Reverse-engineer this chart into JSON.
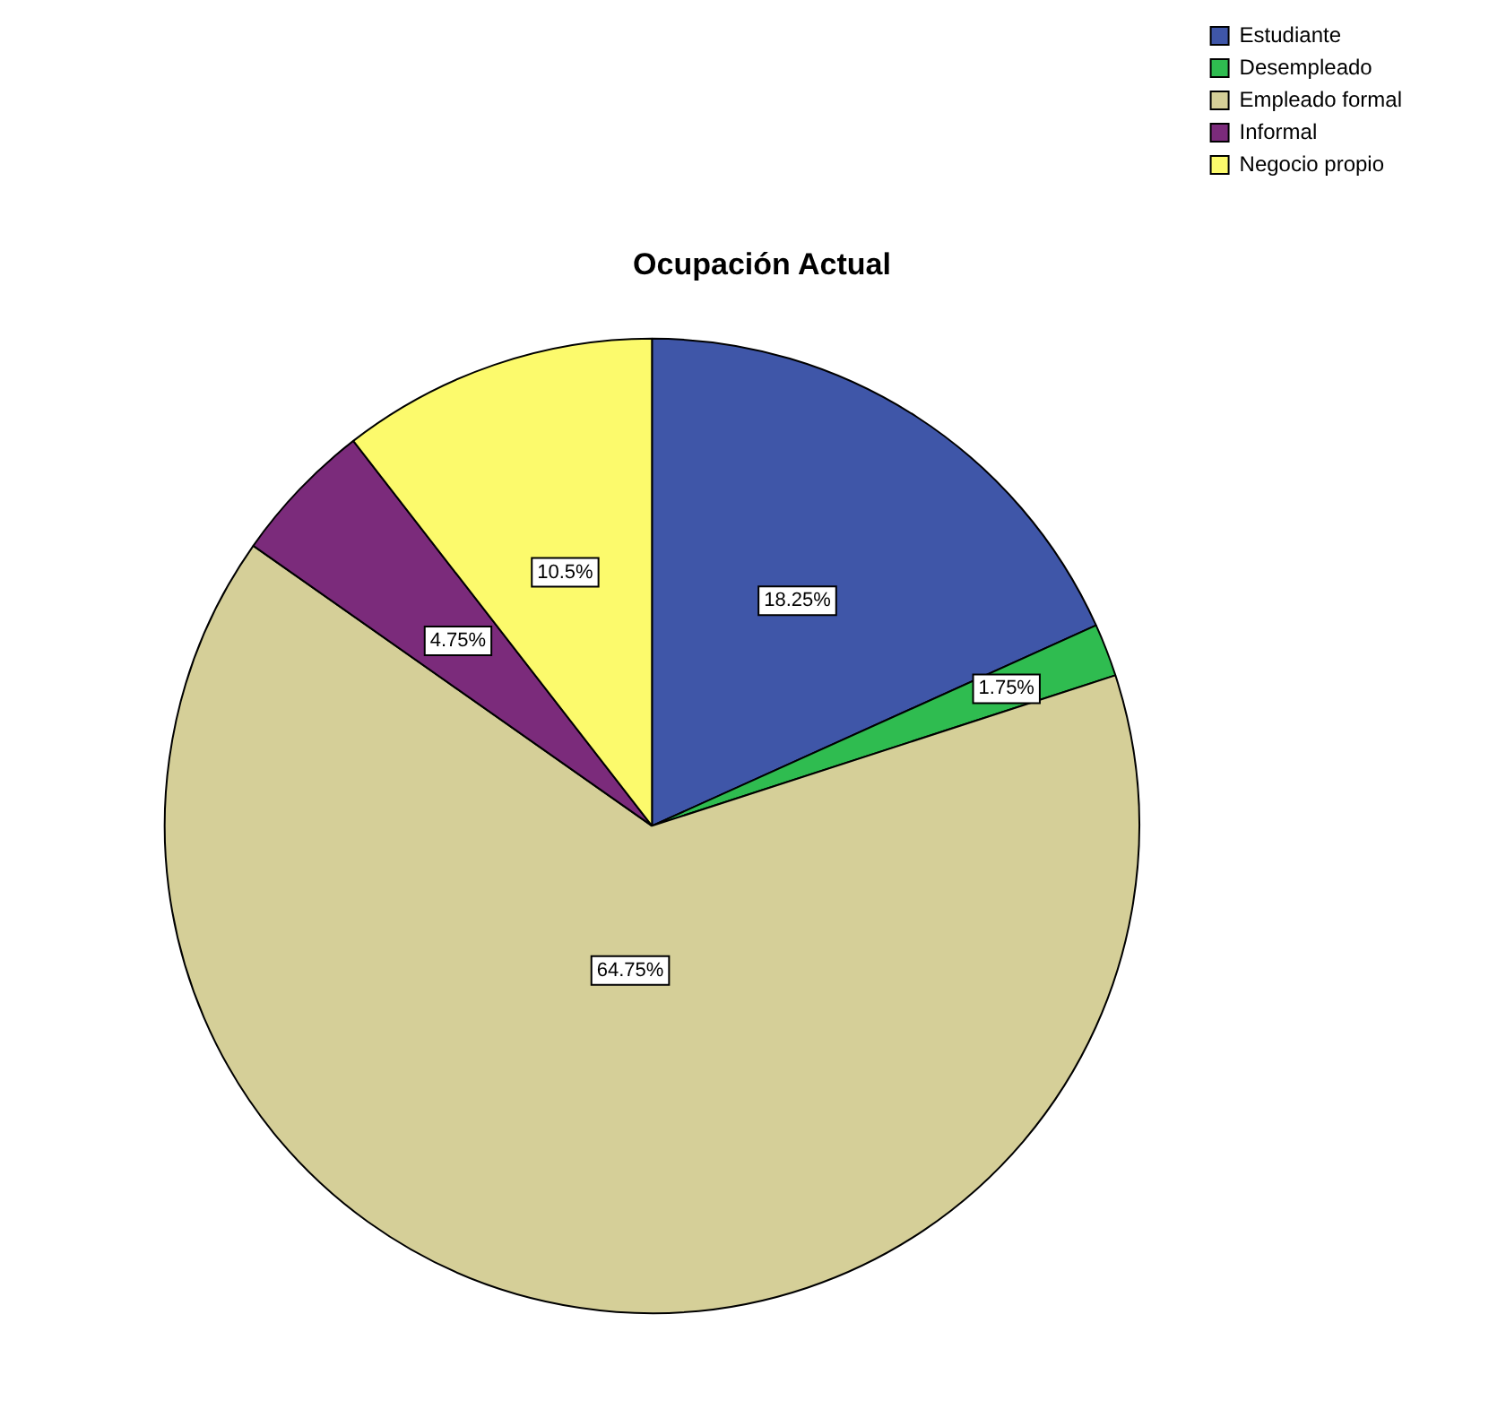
{
  "chart_data": {
    "type": "pie",
    "title": "Ocupación Actual",
    "categories": [
      "Estudiante",
      "Desempleado",
      "Empleado formal",
      "Informal",
      "Negocio propio"
    ],
    "values": [
      18.25,
      1.75,
      64.75,
      4.75,
      10.5
    ],
    "value_labels": [
      "18.25%",
      "1.75%",
      "64.75%",
      "4.75%",
      "10.5%"
    ],
    "colors": [
      "#3f56a8",
      "#2fbc50",
      "#d5cf98",
      "#7b2b7b",
      "#fcfa6c"
    ],
    "legend": "top right"
  }
}
